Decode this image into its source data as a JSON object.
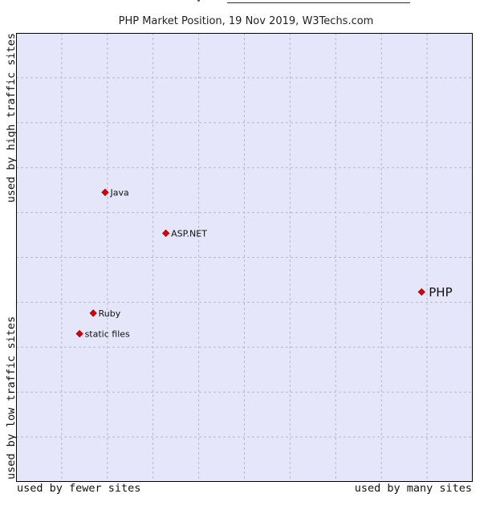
{
  "chart_data": {
    "type": "scatter",
    "title": "PHP Market Position, 19 Nov 2019, W3Techs.com",
    "xlabel_left": "used by fewer sites",
    "xlabel_right": "used by many sites",
    "ylabel_bottom": "used by low traffic sites",
    "ylabel_top": "used by high traffic sites",
    "xlim": [
      0,
      100
    ],
    "ylim": [
      0,
      100
    ],
    "grid": true,
    "x_divisions": 10,
    "y_divisions": 10,
    "colors": {
      "plot_bg": "#e6e6fa",
      "grid": "#b8b8cc",
      "point": "#dd0000",
      "point_edge": "#880000",
      "frame": "#000000"
    },
    "points": [
      {
        "label": "Java",
        "x": 19.5,
        "y": 64.5,
        "highlight": false
      },
      {
        "label": "ASP.NET",
        "x": 32.8,
        "y": 55.4,
        "highlight": false
      },
      {
        "label": "PHP",
        "x": 88.8,
        "y": 42.3,
        "highlight": true
      },
      {
        "label": "Ruby",
        "x": 16.9,
        "y": 37.6,
        "highlight": false
      },
      {
        "label": "static files",
        "x": 13.9,
        "y": 33.0,
        "highlight": false
      }
    ]
  }
}
